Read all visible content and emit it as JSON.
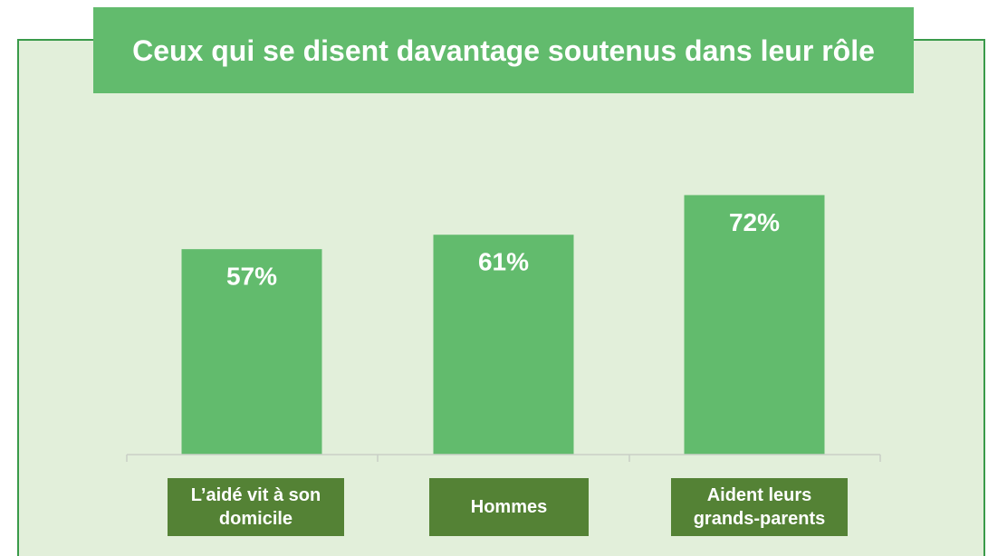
{
  "chart_data": {
    "type": "bar",
    "title": "Ceux qui se disent davantage soutenus dans leur rôle",
    "categories": [
      "L’aidé vit à son domicile",
      "Hommes",
      "Aident leurs grands-parents"
    ],
    "values": [
      57,
      61,
      72
    ],
    "value_labels": [
      "57%",
      "61%",
      "72%"
    ],
    "color": "#62bb6d"
  }
}
